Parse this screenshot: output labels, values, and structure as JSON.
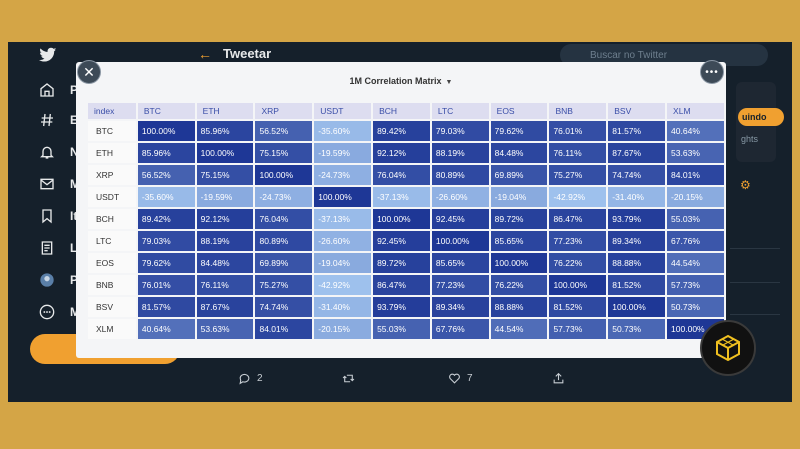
{
  "nav": {
    "items": [
      {
        "icon": "home-icon",
        "label": "Pá"
      },
      {
        "icon": "hashtag-icon",
        "label": "Ex"
      },
      {
        "icon": "bell-icon",
        "label": "No"
      },
      {
        "icon": "mail-icon",
        "label": "M"
      },
      {
        "icon": "bookmark-icon",
        "label": "Ite"
      },
      {
        "icon": "list-icon",
        "label": "Lis"
      },
      {
        "icon": "avatar-icon",
        "label": "Pe"
      },
      {
        "icon": "more-icon",
        "label": "M"
      }
    ]
  },
  "header": {
    "title": "Tweetar",
    "back_icon": "arrow-left-icon"
  },
  "search": {
    "placeholder": "Buscar no Twitter"
  },
  "right": {
    "follow_label": "uindo",
    "note": "ghts"
  },
  "modal": {
    "title": "1M Correlation Matrix",
    "index_label": "index",
    "columns": [
      "BTC",
      "ETH",
      "XRP",
      "USDT",
      "BCH",
      "LTC",
      "EOS",
      "BNB",
      "BSV",
      "XLM"
    ],
    "rows": [
      {
        "label": "BTC",
        "values": [
          "100.00%",
          "85.96%",
          "56.52%",
          "-35.60%",
          "89.42%",
          "79.03%",
          "79.62%",
          "76.01%",
          "81.57%",
          "40.64%"
        ]
      },
      {
        "label": "ETH",
        "values": [
          "85.96%",
          "100.00%",
          "75.15%",
          "-19.59%",
          "92.12%",
          "88.19%",
          "84.48%",
          "76.11%",
          "87.67%",
          "53.63%"
        ]
      },
      {
        "label": "XRP",
        "values": [
          "56.52%",
          "75.15%",
          "100.00%",
          "-24.73%",
          "76.04%",
          "80.89%",
          "69.89%",
          "75.27%",
          "74.74%",
          "84.01%"
        ]
      },
      {
        "label": "USDT",
        "values": [
          "-35.60%",
          "-19.59%",
          "-24.73%",
          "100.00%",
          "-37.13%",
          "-26.60%",
          "-19.04%",
          "-42.92%",
          "-31.40%",
          "-20.15%"
        ]
      },
      {
        "label": "BCH",
        "values": [
          "89.42%",
          "92.12%",
          "76.04%",
          "-37.13%",
          "100.00%",
          "92.45%",
          "89.72%",
          "86.47%",
          "93.79%",
          "55.03%"
        ]
      },
      {
        "label": "LTC",
        "values": [
          "79.03%",
          "88.19%",
          "80.89%",
          "-26.60%",
          "92.45%",
          "100.00%",
          "85.65%",
          "77.23%",
          "89.34%",
          "67.76%"
        ]
      },
      {
        "label": "EOS",
        "values": [
          "79.62%",
          "84.48%",
          "69.89%",
          "-19.04%",
          "89.72%",
          "85.65%",
          "100.00%",
          "76.22%",
          "88.88%",
          "44.54%"
        ]
      },
      {
        "label": "BNB",
        "values": [
          "76.01%",
          "76.11%",
          "75.27%",
          "-42.92%",
          "86.47%",
          "77.23%",
          "76.22%",
          "100.00%",
          "81.52%",
          "57.73%"
        ]
      },
      {
        "label": "BSV",
        "values": [
          "81.57%",
          "87.67%",
          "74.74%",
          "-31.40%",
          "93.79%",
          "89.34%",
          "88.88%",
          "81.52%",
          "100.00%",
          "50.73%"
        ]
      },
      {
        "label": "XLM",
        "values": [
          "40.64%",
          "53.63%",
          "84.01%",
          "-20.15%",
          "55.03%",
          "67.76%",
          "44.54%",
          "57.73%",
          "50.73%",
          "100.00%"
        ]
      }
    ]
  },
  "actions": {
    "reply_count": "2",
    "like_count": "7"
  },
  "colors": {
    "accent": "#f0a030",
    "background": "#15202b",
    "frame": "#d4a546"
  }
}
